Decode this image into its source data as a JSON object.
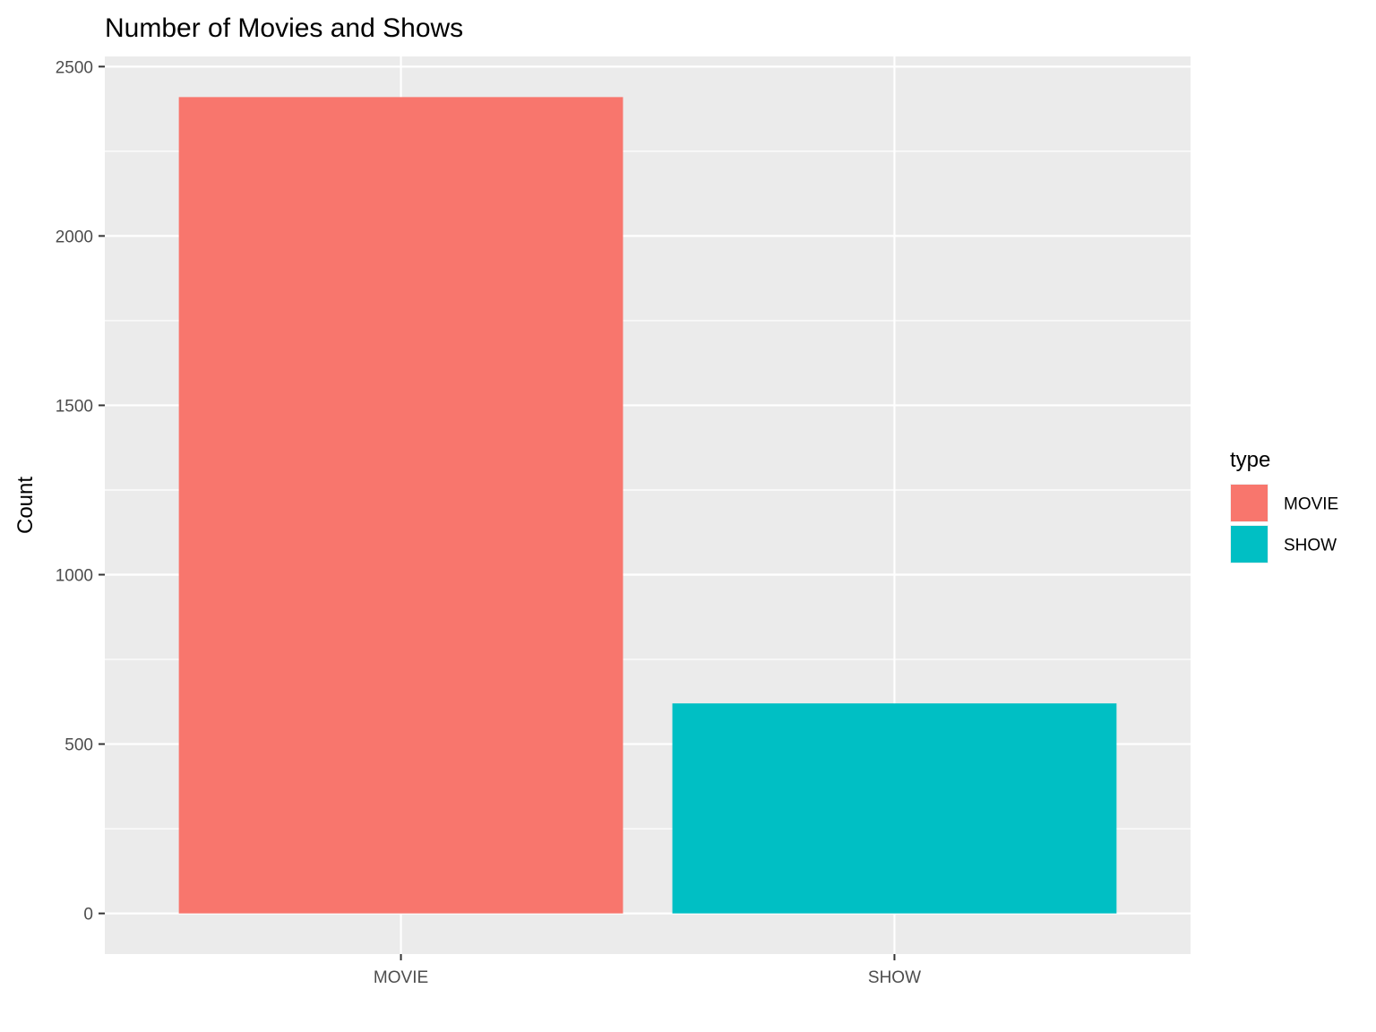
{
  "chart_data": {
    "type": "bar",
    "title": "Number of Movies and Shows",
    "xlabel": "",
    "ylabel": "Count",
    "categories": [
      "MOVIE",
      "SHOW"
    ],
    "values": [
      2410,
      620
    ],
    "colors": [
      "#F8766D",
      "#00BFC4"
    ],
    "ylim": [
      -120,
      2530
    ],
    "yticks": [
      0,
      500,
      1000,
      1500,
      2000,
      2500
    ],
    "ytick_labels": [
      "0",
      "500",
      "1000",
      "1500",
      "2000",
      "2500"
    ],
    "grid": true,
    "panel_background": "#EBEBEB",
    "legend": {
      "title": "type",
      "placement": "right",
      "entries": [
        {
          "label": "MOVIE",
          "color": "#F8766D"
        },
        {
          "label": "SHOW",
          "color": "#00BFC4"
        }
      ]
    }
  }
}
